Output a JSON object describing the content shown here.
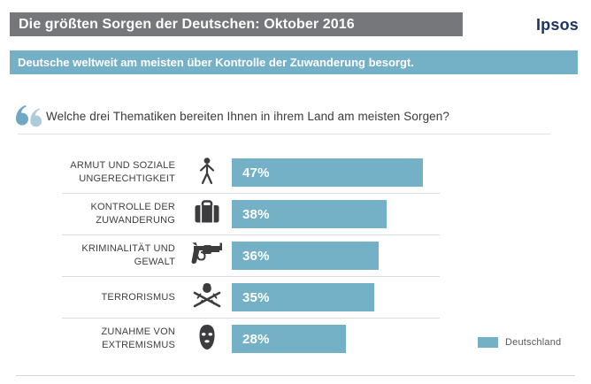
{
  "header": {
    "title": "Die größten Sorgen der Deutschen: Oktober 2016",
    "logo": "Ipsos",
    "subtitle": "Deutsche weltweit am meisten über Kontrolle der Zuwanderung besorgt."
  },
  "question": {
    "text": "Welche drei Thematiken bereiten Ihnen in ihrem Land am meisten Sorgen?"
  },
  "legend": {
    "label": "Deutschland",
    "color": "#74b0c6",
    "position": "bottom-right"
  },
  "colors": {
    "title_bar_bg": "#76777b",
    "accent_teal": "#74b0c6",
    "logo_navy": "#1d3462",
    "icon_dark": "#3c3c3e",
    "bar_value_text": "#ffffff"
  },
  "chart_data": {
    "type": "bar",
    "orientation": "horizontal",
    "title": "Die größten Sorgen der Deutschen: Oktober 2016",
    "subtitle": "Deutsche weltweit am meisten über Kontrolle der Zuwanderung besorgt.",
    "question": "Welche drei Thematiken bereiten Ihnen in ihrem Land am meisten Sorgen?",
    "categories": [
      "ARMUT UND SOZIALE\nUNGERECHTIGKEIT",
      "KONTROLLE DER\nZUWANDERUNG",
      "KRIMINALITÄT UND\nGEWALT",
      "TERRORISMUS",
      "ZUNAHME VON\nEXTREMISMUS"
    ],
    "values": [
      47,
      38,
      36,
      35,
      28
    ],
    "unit": "%",
    "xlim": [
      0,
      100
    ],
    "bar_color": "#74b0c6",
    "grid": false,
    "legend_entries": [
      "Deutschland"
    ],
    "icons": [
      "person-icon",
      "suitcase-icon",
      "revolver-icon",
      "terrorism-icon",
      "balaclava-icon"
    ]
  }
}
